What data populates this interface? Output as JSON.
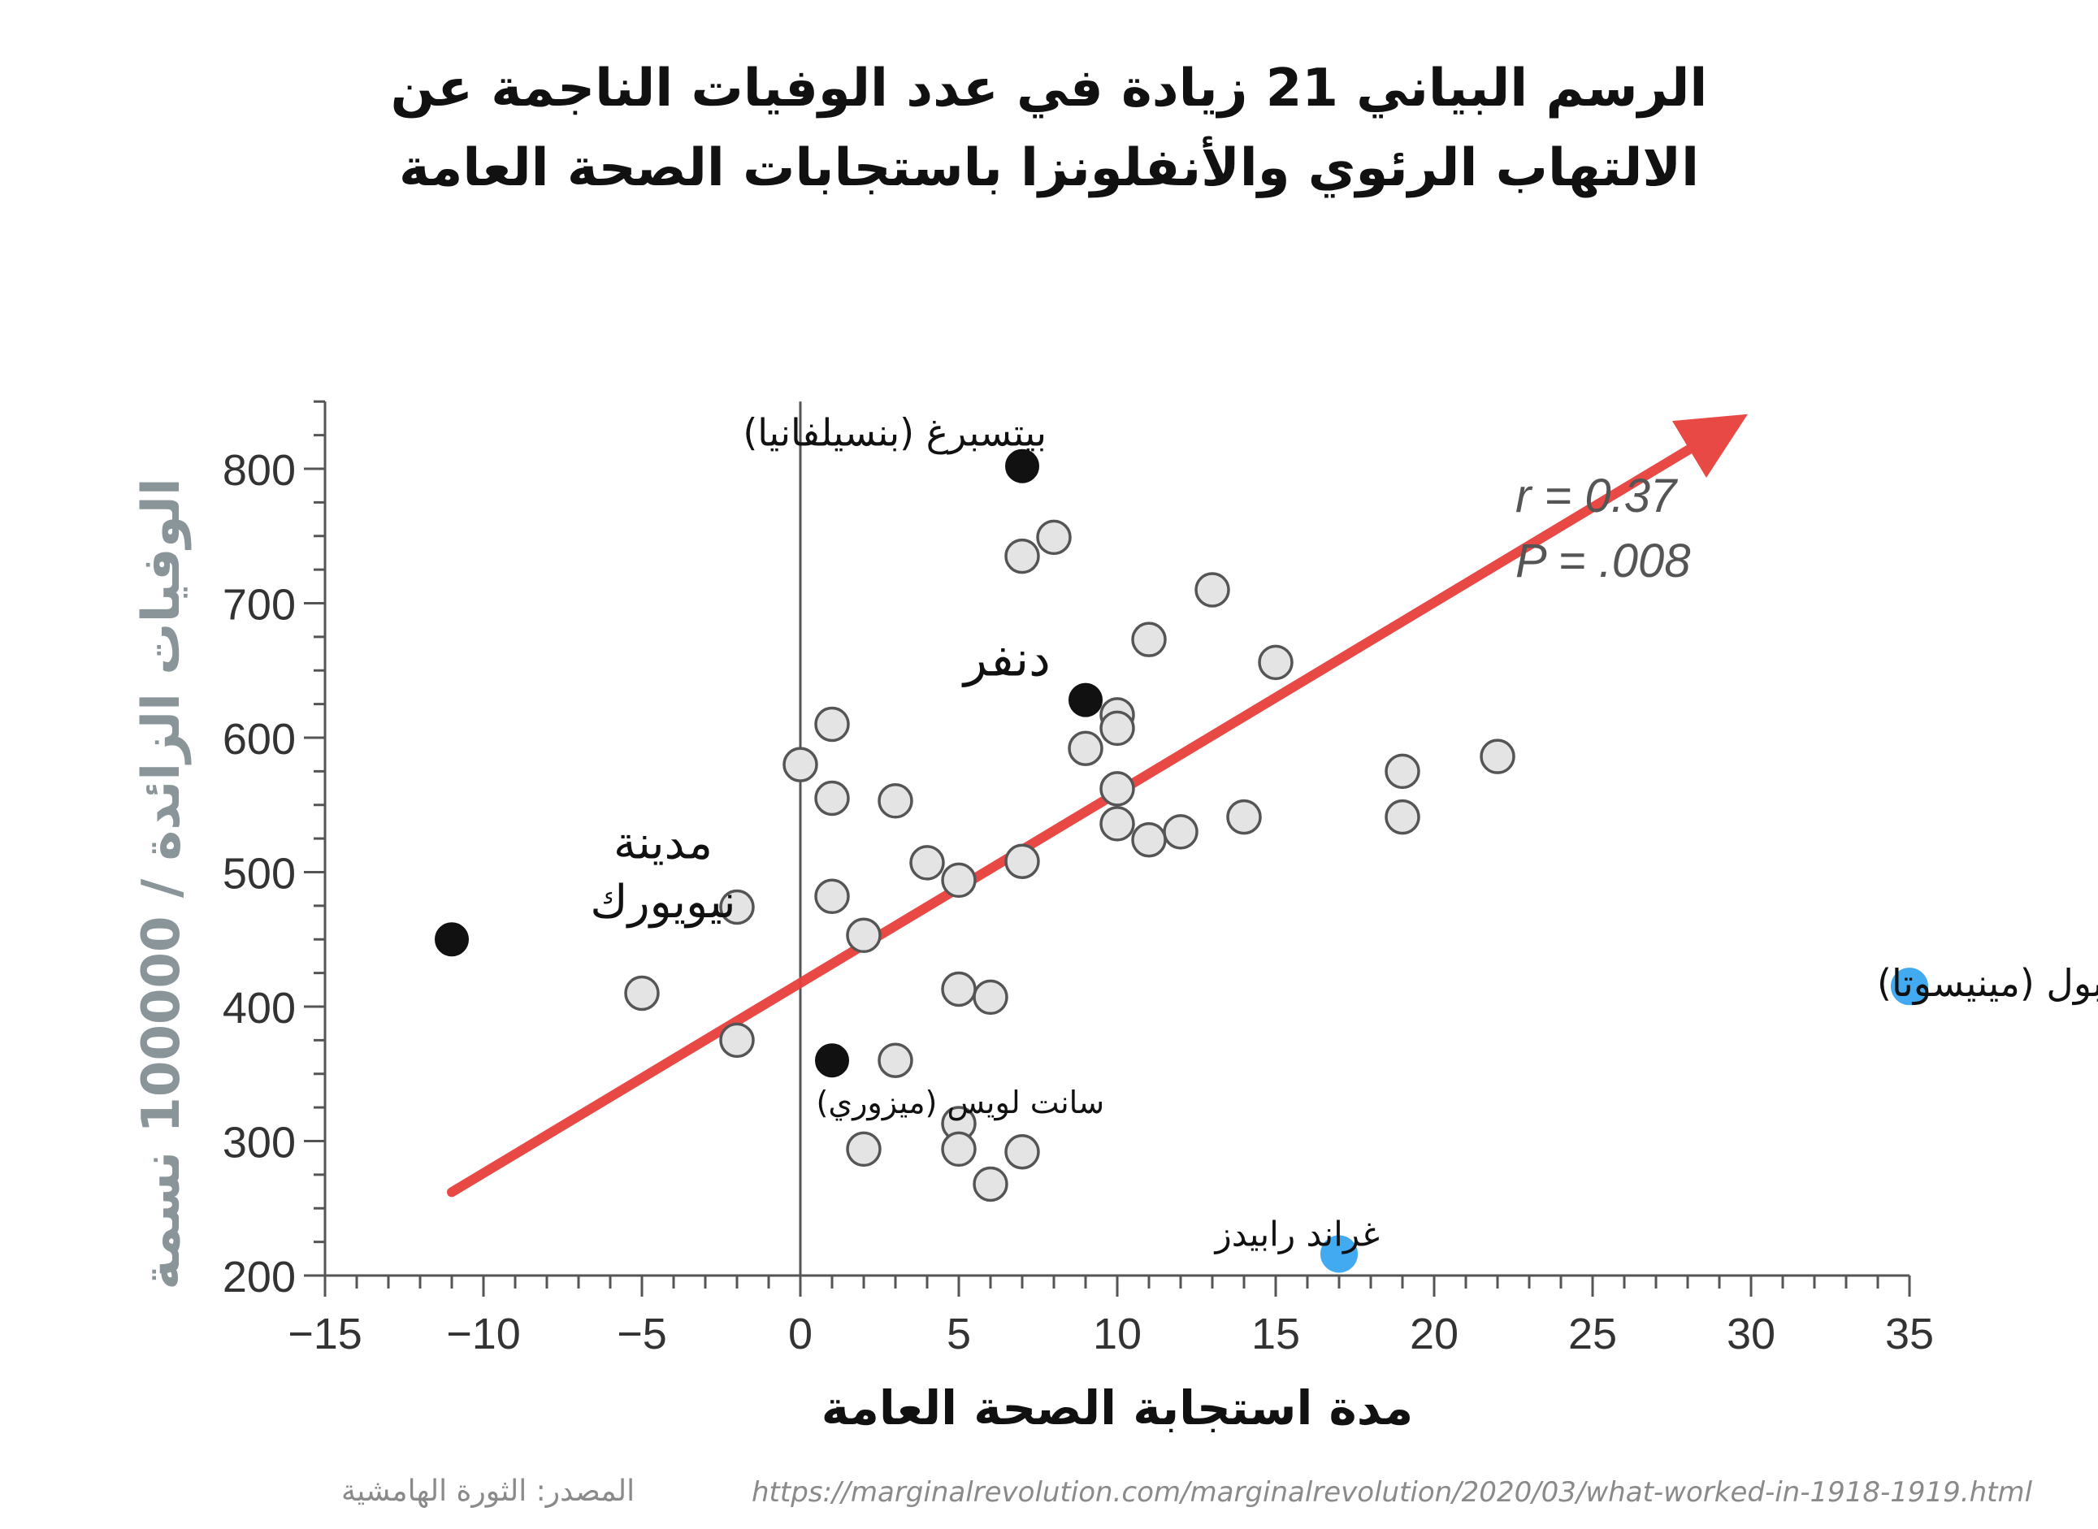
{
  "title_lines": [
    "الرسم البياني 21 زيادة في عدد الوفيات الناجمة عن",
    "الالتهاب الرئوي والأنفلونزا باستجابات الصحة العامة"
  ],
  "source": {
    "label": "المصدر: الثورة الهامشية",
    "url": "https://marginalrevolution.com/marginalrevolution/2020/03/what-worked-in-1918-1919.html"
  },
  "colors": {
    "trend_arrow": "#e8403c",
    "highlight_point": "#111111",
    "outlier_point": "#42aaf0",
    "regular_point_fill": "#e4e4e4",
    "ylabel": "#8a959a"
  },
  "chart_data": {
    "type": "scatter",
    "xlabel": "مدة استجابة الصحة العامة",
    "ylabel": "الوفيات الزائدة / 100000 نسمة",
    "xlim": [
      -15,
      35
    ],
    "ylim": [
      200,
      850
    ],
    "xticks": [
      -15,
      -10,
      -5,
      0,
      5,
      10,
      15,
      20,
      25,
      30,
      35
    ],
    "yticks": [
      200,
      300,
      400,
      500,
      600,
      700,
      800
    ],
    "xtick_labels": [
      "−15",
      "−10",
      "−5",
      "0",
      "5",
      "10",
      "15",
      "20",
      "25",
      "30",
      "35"
    ],
    "ytick_labels": [
      "200",
      "300",
      "400",
      "500",
      "600",
      "700",
      "800"
    ],
    "stats": {
      "r": "r = 0.37",
      "p": "P = .008"
    },
    "trend_line": {
      "from": [
        -11,
        262
      ],
      "to": [
        29.5,
        835
      ]
    },
    "points": [
      [
        -5,
        410
      ],
      [
        -2,
        474
      ],
      [
        -2,
        375
      ],
      [
        0,
        580
      ],
      [
        1,
        610
      ],
      [
        1,
        555
      ],
      [
        1,
        482
      ],
      [
        2,
        453
      ],
      [
        2,
        294
      ],
      [
        3,
        553
      ],
      [
        3,
        360
      ],
      [
        4,
        507
      ],
      [
        5,
        494
      ],
      [
        5,
        413
      ],
      [
        5,
        313
      ],
      [
        5,
        294
      ],
      [
        6,
        407
      ],
      [
        6,
        268
      ],
      [
        7,
        735
      ],
      [
        7,
        508
      ],
      [
        7,
        292
      ],
      [
        8,
        749
      ],
      [
        9,
        592
      ],
      [
        10,
        617
      ],
      [
        10,
        607
      ],
      [
        10,
        562
      ],
      [
        10,
        536
      ],
      [
        11,
        673
      ],
      [
        11,
        524
      ],
      [
        12,
        530
      ],
      [
        13,
        710
      ],
      [
        14,
        541
      ],
      [
        15,
        656
      ],
      [
        19,
        575
      ],
      [
        19,
        541
      ],
      [
        22,
        586
      ]
    ],
    "highlighted": [
      {
        "x": 7,
        "y": 802,
        "label": "بيتسبرغ (بنسيلفانيا)",
        "color": "black"
      },
      {
        "x": 9,
        "y": 628,
        "label": "دنفر",
        "color": "black"
      },
      {
        "x": -11,
        "y": 450,
        "label": "مدينة نيويورك",
        "color": "black"
      },
      {
        "x": 1,
        "y": 360,
        "label": "سانت لويس (ميزوري)",
        "color": "black"
      },
      {
        "x": 35,
        "y": 415,
        "label": "سانت بول (مينيسوتا)",
        "color": "blue"
      },
      {
        "x": 17,
        "y": 216,
        "label": "غراند رابيدز",
        "color": "blue"
      }
    ]
  }
}
